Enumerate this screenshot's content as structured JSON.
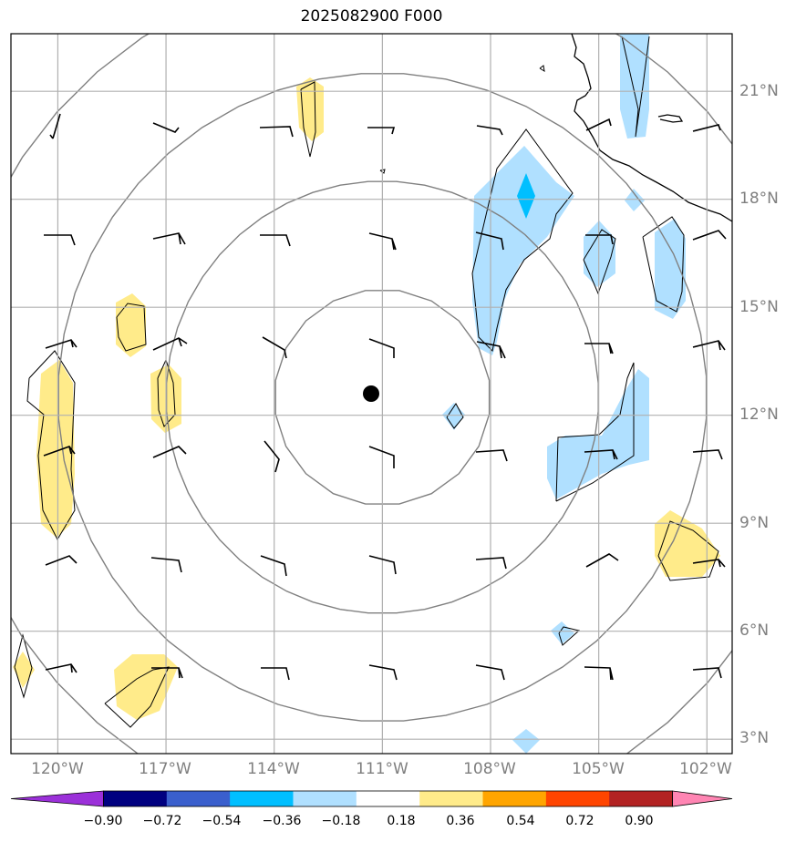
{
  "title": "2025082900 F000",
  "map": {
    "center": {
      "lon": -111,
      "lat": 12.5
    },
    "lon_range": [
      -121.3,
      -101.3
    ],
    "lat_range": [
      2.6,
      22.6
    ],
    "lat_labels": [
      "3°N",
      "6°N",
      "9°N",
      "12°N",
      "15°N",
      "18°N",
      "21°N"
    ],
    "lat_values": [
      3,
      6,
      9,
      12,
      15,
      18,
      21
    ],
    "lon_labels": [
      "120°W",
      "117°W",
      "114°W",
      "111°W",
      "108°W",
      "105°W",
      "102°W"
    ],
    "lon_values": [
      -120,
      -117,
      -114,
      -111,
      -108,
      -105,
      -102
    ],
    "range_rings_deg": [
      3,
      6,
      9,
      12
    ]
  },
  "colorbar": {
    "ticks": [
      "−0.90",
      "−0.72",
      "−0.54",
      "−0.36",
      "−0.18",
      "0.18",
      "0.36",
      "0.54",
      "0.72",
      "0.90"
    ],
    "colors": [
      "#9b30d9",
      "#000080",
      "#3a5fcd",
      "#00bfff",
      "#b0e0ff",
      "#ffffff",
      "#ffeb8a",
      "#ffa500",
      "#ff4500",
      "#b22222",
      "#ff85b3"
    ]
  },
  "colors": {
    "grid": "#b0b0b0",
    "ring": "#808080",
    "light_blue": "#b0e0ff",
    "blue": "#00bfff",
    "yellow": "#ffeb8a"
  }
}
